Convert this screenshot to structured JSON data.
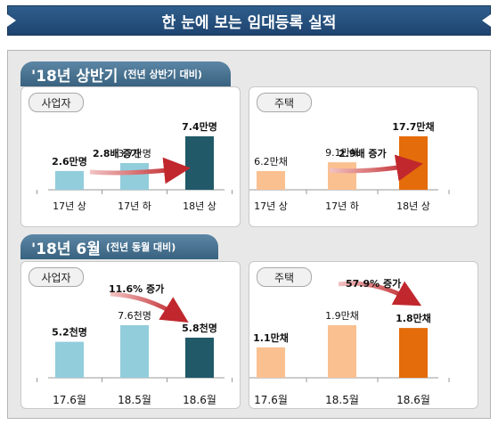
{
  "banner": {
    "title": "한 눈에 보는 임대등록 실적"
  },
  "section1": {
    "title": "'18년 상반기",
    "subtitle": "(전년 상반기 대비)"
  },
  "section2": {
    "title": "'18년 6월",
    "subtitle": "(전년 동월 대비)"
  },
  "chart_data": [
    {
      "type": "bar",
      "tag": "사업자",
      "categories": [
        "17년 상",
        "17년 하",
        "18년 상"
      ],
      "values": [
        2.6,
        3.7,
        7.4
      ],
      "data_labels": [
        "2.6만명",
        "3.7만명",
        "7.4만명"
      ],
      "label_bold": [
        true,
        false,
        true
      ],
      "bar_colors": [
        "#92cddc",
        "#92cddc",
        "#215968"
      ],
      "annotation": "2.8배 증가"
    },
    {
      "type": "bar",
      "tag": "주택",
      "categories": [
        "17년 상",
        "17년 하",
        "18년 상"
      ],
      "values": [
        6.2,
        9.1,
        17.7
      ],
      "data_labels": [
        "6.2만채",
        "9.1만채",
        "17.7만채"
      ],
      "label_bold": [
        false,
        false,
        true
      ],
      "bar_colors": [
        "#fac090",
        "#fac090",
        "#e46c0a"
      ],
      "annotation": "2.9배 증가"
    },
    {
      "type": "bar",
      "tag": "사업자",
      "categories": [
        "17.6월",
        "18.5월",
        "18.6월"
      ],
      "values": [
        5.2,
        7.6,
        5.8
      ],
      "data_labels": [
        "5.2천명",
        "7.6천명",
        "5.8천명"
      ],
      "label_bold": [
        true,
        false,
        true
      ],
      "bar_colors": [
        "#92cddc",
        "#92cddc",
        "#215968"
      ],
      "annotation": "11.6% 증가"
    },
    {
      "type": "bar",
      "tag": "주택",
      "categories": [
        "17.6월",
        "18.5월",
        "18.6월"
      ],
      "values": [
        1.1,
        1.9,
        1.8
      ],
      "data_labels": [
        "1.1만채",
        "1.9만채",
        "1.8만채"
      ],
      "label_bold": [
        true,
        false,
        true
      ],
      "bar_colors": [
        "#fac090",
        "#fac090",
        "#e46c0a"
      ],
      "annotation": "57.9% 증가"
    }
  ]
}
